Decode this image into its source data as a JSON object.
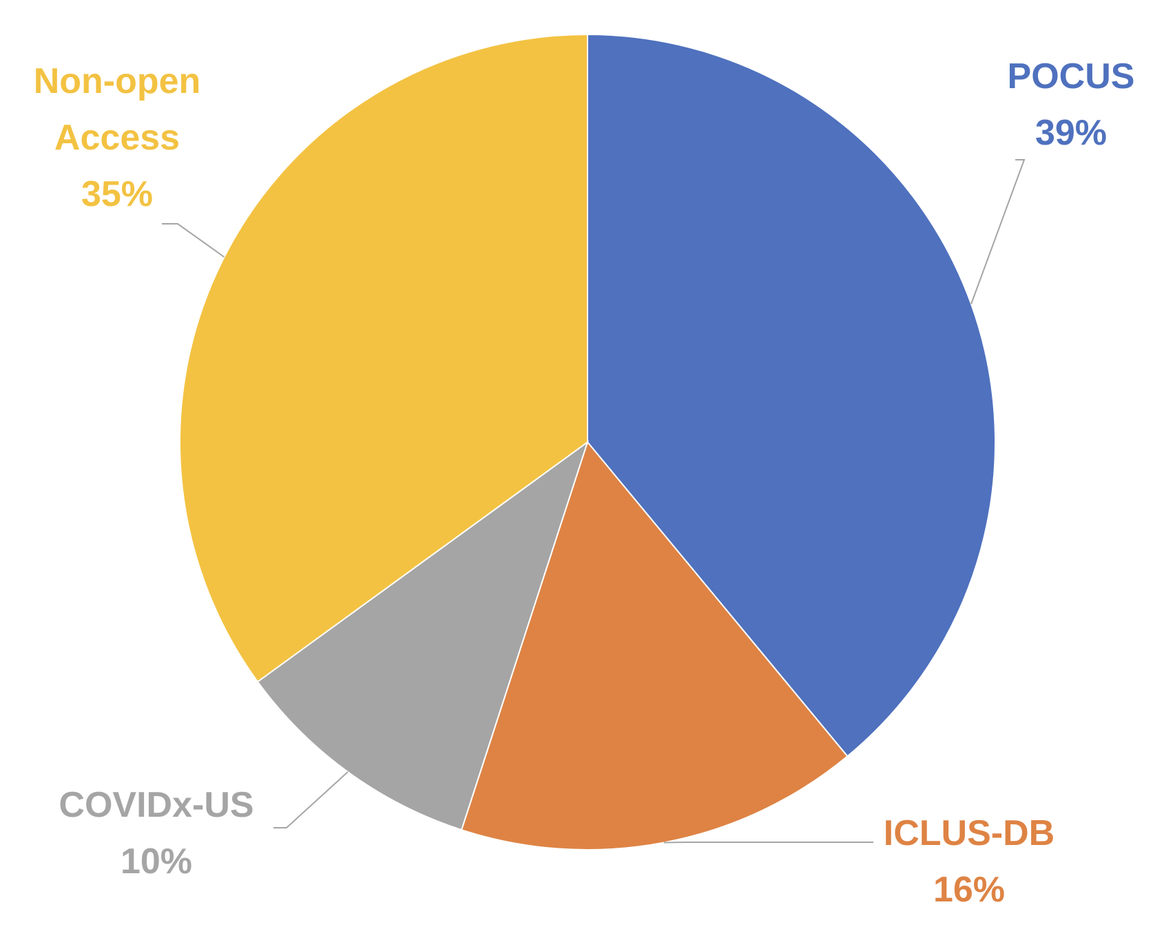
{
  "chart_data": {
    "type": "pie",
    "title": "",
    "start_angle_deg": 0,
    "direction": "clockwise",
    "slices": [
      {
        "label_lines": [
          "POCUS"
        ],
        "value": 39,
        "value_label": "39%",
        "color": "#4F71BE"
      },
      {
        "label_lines": [
          "ICLUS-DB"
        ],
        "value": 16,
        "value_label": "16%",
        "color": "#DE8344"
      },
      {
        "label_lines": [
          "COVIDx-US"
        ],
        "value": 10,
        "value_label": "10%",
        "color": "#A5A5A5"
      },
      {
        "label_lines": [
          "Non-open",
          "Access"
        ],
        "value": 35,
        "value_label": "35%",
        "color": "#F3C242"
      }
    ],
    "leader_line_color": "#A5A5A5",
    "legend": "none"
  }
}
